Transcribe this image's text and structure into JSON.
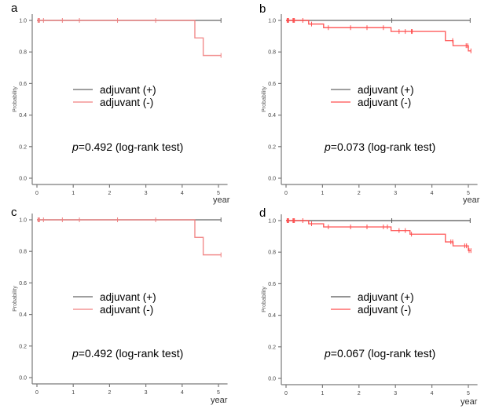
{
  "chart_data": [
    {
      "type": "line",
      "subtype": "kaplan-meier",
      "panel": "a",
      "xlabel": "year",
      "ylabel": "Probability",
      "xlim": [
        0,
        5.1
      ],
      "ylim": [
        0,
        1.0
      ],
      "xticks": [
        "0",
        "1",
        "2",
        "3",
        "4",
        "5"
      ],
      "yticks": [
        "0.0",
        "0.2",
        "0.4",
        "0.6",
        "0.8",
        "1.0"
      ],
      "legend": [
        "adjuvant (+)",
        "adjuvant (-)"
      ],
      "legend_placement": "center-left",
      "annotation": {
        "p_symbol": "p",
        "text": "=0.492 (log-rank test)"
      },
      "series": [
        {
          "name": "adjuvant (+)",
          "color": "#666666",
          "steps": [
            [
              0,
              1.0
            ],
            [
              5.07,
              1.0
            ]
          ],
          "censor": [
            5.07
          ]
        },
        {
          "name": "adjuvant (-)",
          "color": "#f08080",
          "steps": [
            [
              0,
              1.0
            ],
            [
              4.35,
              0.889
            ],
            [
              4.58,
              0.778
            ],
            [
              5.07,
              0.778
            ]
          ],
          "censor": [
            0.03,
            0.05,
            0.07,
            0.18,
            0.7,
            1.17,
            2.22,
            3.27,
            5.07
          ]
        }
      ]
    },
    {
      "type": "line",
      "subtype": "kaplan-meier",
      "panel": "b",
      "xlabel": "year",
      "ylabel": "Probability",
      "xlim": [
        0,
        5.1
      ],
      "ylim": [
        0,
        1.0
      ],
      "xticks": [
        "0",
        "1",
        "2",
        "3",
        "4",
        "5"
      ],
      "yticks": [
        "0.0",
        "0.2",
        "0.4",
        "0.6",
        "0.8",
        "1.0"
      ],
      "legend": [
        "adjuvant (+)",
        "adjuvant (-)"
      ],
      "legend_placement": "center-left",
      "annotation": {
        "p_symbol": "p",
        "text": "=0.073 (log-rank test)"
      },
      "series": [
        {
          "name": "adjuvant (+)",
          "color": "#666666",
          "steps": [
            [
              0,
              1.0
            ],
            [
              5.05,
              1.0
            ]
          ],
          "censor": [
            2.9,
            5.05
          ]
        },
        {
          "name": "adjuvant (-)",
          "color": "#ff4d4d",
          "steps": [
            [
              0,
              1.0
            ],
            [
              0.62,
              0.977
            ],
            [
              1.03,
              0.954
            ],
            [
              2.88,
              0.93
            ],
            [
              4.37,
              0.872
            ],
            [
              4.58,
              0.84
            ],
            [
              5.0,
              0.807
            ],
            [
              5.07,
              0.807
            ]
          ],
          "censor": [
            0.03,
            0.05,
            0.07,
            0.19,
            0.21,
            0.23,
            0.46,
            0.7,
            1.16,
            1.77,
            2.22,
            2.67,
            3.1,
            3.27,
            3.44,
            3.46,
            4.57,
            4.94,
            4.98,
            5.07
          ]
        }
      ]
    },
    {
      "type": "line",
      "subtype": "kaplan-meier",
      "panel": "c",
      "xlabel": "year",
      "ylabel": "Probability",
      "xlim": [
        0,
        5.1
      ],
      "ylim": [
        0,
        1.0
      ],
      "xticks": [
        "0",
        "1",
        "2",
        "3",
        "4",
        "5"
      ],
      "yticks": [
        "0.0",
        "0.2",
        "0.4",
        "0.6",
        "0.8",
        "1.0"
      ],
      "legend": [
        "adjuvant (+)",
        "adjuvant (-)"
      ],
      "legend_placement": "center-left",
      "annotation": {
        "p_symbol": "p",
        "text": "=0.492 (log-rank test)"
      },
      "series": [
        {
          "name": "adjuvant (+)",
          "color": "#666666",
          "steps": [
            [
              0,
              1.0
            ],
            [
              5.07,
              1.0
            ]
          ],
          "censor": [
            5.07
          ]
        },
        {
          "name": "adjuvant (-)",
          "color": "#f08080",
          "steps": [
            [
              0,
              1.0
            ],
            [
              4.35,
              0.889
            ],
            [
              4.58,
              0.778
            ],
            [
              5.07,
              0.778
            ]
          ],
          "censor": [
            0.03,
            0.05,
            0.07,
            0.18,
            0.7,
            1.17,
            2.22,
            3.27,
            5.07
          ]
        }
      ]
    },
    {
      "type": "line",
      "subtype": "kaplan-meier",
      "panel": "d",
      "xlabel": "year",
      "ylabel": "Probability",
      "xlim": [
        0,
        5.1
      ],
      "ylim": [
        0,
        1.0
      ],
      "xticks": [
        "0",
        "1",
        "2",
        "3",
        "4",
        "5"
      ],
      "yticks": [
        "0.0",
        "0.2",
        "0.4",
        "0.6",
        "0.8",
        "1.0"
      ],
      "legend": [
        "adjuvant (+)",
        "adjuvant (-)"
      ],
      "legend_placement": "center-left",
      "annotation": {
        "p_symbol": "p",
        "text": "=0.067 (log-rank test)"
      },
      "series": [
        {
          "name": "adjuvant (+)",
          "color": "#555555",
          "steps": [
            [
              0,
              1.0
            ],
            [
              5.05,
              1.0
            ]
          ],
          "censor": [
            2.9,
            5.05
          ]
        },
        {
          "name": "adjuvant (-)",
          "color": "#ff4d4d",
          "steps": [
            [
              0,
              1.0
            ],
            [
              0.62,
              0.98
            ],
            [
              1.03,
              0.96
            ],
            [
              2.88,
              0.937
            ],
            [
              3.4,
              0.914
            ],
            [
              4.37,
              0.865
            ],
            [
              4.58,
              0.84
            ],
            [
              5.0,
              0.81
            ],
            [
              5.07,
              0.81
            ]
          ],
          "censor": [
            0.03,
            0.05,
            0.07,
            0.19,
            0.21,
            0.23,
            0.46,
            0.7,
            1.16,
            1.77,
            2.22,
            2.67,
            2.78,
            3.1,
            3.27,
            3.44,
            4.52,
            4.57,
            4.9,
            4.95,
            5.02,
            5.07
          ]
        }
      ]
    }
  ]
}
